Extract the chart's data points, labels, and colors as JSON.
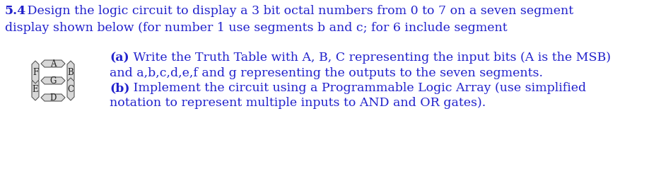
{
  "title_bold": "5.4",
  "title_text": " Design the logic circuit to display a 3 bit octal numbers from 0 to 7 on a seven segment",
  "line2_text": "display shown below (for number 1 use segments b and c; for 6 include segment",
  "para_a_bold": "(a)",
  "para_a_text": " Write the Truth Table with A, B, C representing the input bits (A is the MSB)",
  "para_a_line2": "and a,b,c,d,e,f and g representing the outputs to the seven segments.",
  "para_b_bold": "(b)",
  "para_b_text": " Implement the circuit using a Programmable Logic Array (use simplified",
  "para_b_line2": "notation to represent multiple inputs to AND and OR gates).",
  "font_size": 12.5,
  "text_color": "#2222cc",
  "bg_color": "#ffffff",
  "seg_fill": "#d8d8d8",
  "seg_edge": "#555555",
  "seg_label_color": "#222222",
  "seg_label_fs": 8.5
}
